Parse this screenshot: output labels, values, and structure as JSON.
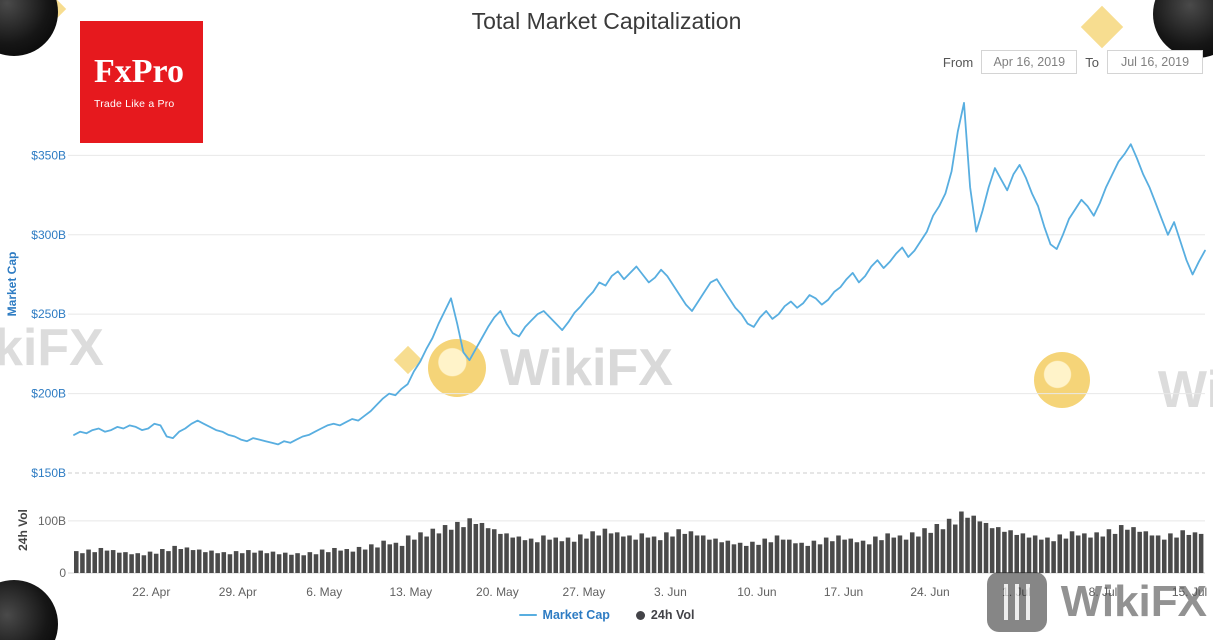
{
  "header": {
    "title": "Total Market Capitalization",
    "logo": {
      "name": "FxPro",
      "tagline": "Trade Like a Pro"
    },
    "date_range": {
      "from_label": "From",
      "from_value": "Apr 16, 2019",
      "to_label": "To",
      "to_value": "Jul 16, 2019"
    }
  },
  "watermarks": {
    "center_text": "WikiFX",
    "left_partial_text": "kiFX",
    "right_partial_text": "Wi",
    "badge_text": "WikiFX"
  },
  "legend": {
    "items": [
      {
        "label": "Market Cap",
        "color": "#58aee0",
        "marker": "line",
        "text_color": "#2e7cc3"
      },
      {
        "label": "24h Vol",
        "color": "#434348",
        "marker": "circle",
        "text_color": "#434348"
      }
    ]
  },
  "chart_data": [
    {
      "type": "line",
      "name": "Market Cap",
      "title": "Total Market Capitalization",
      "ylabel": "Market Cap",
      "unit": "$B",
      "ylim": [
        150,
        388
      ],
      "ytick_values": [
        150,
        200,
        250,
        300,
        350
      ],
      "yticks": [
        "$150B",
        "$200B",
        "$250B",
        "$300B",
        "$350B"
      ],
      "tick_color": "#2e7cc3",
      "line_color": "#58aee0",
      "x_start": "Apr 16, 2019",
      "x_end": "Jul 16, 2019",
      "points_per_day": 2,
      "x_labels": [
        {
          "text": "22. Apr",
          "day": 6
        },
        {
          "text": "29. Apr",
          "day": 13
        },
        {
          "text": "6. May",
          "day": 20
        },
        {
          "text": "13. May",
          "day": 27
        },
        {
          "text": "20. May",
          "day": 34
        },
        {
          "text": "27. May",
          "day": 41
        },
        {
          "text": "3. Jun",
          "day": 48
        },
        {
          "text": "10. Jun",
          "day": 55
        },
        {
          "text": "17. Jun",
          "day": 62
        },
        {
          "text": "24. Jun",
          "day": 69
        },
        {
          "text": "1. Jul",
          "day": 76
        },
        {
          "text": "8. Jul",
          "day": 83
        },
        {
          "text": "15. Jul",
          "day": 90
        }
      ],
      "values": [
        174,
        176,
        175,
        177,
        178,
        176,
        177,
        179,
        178,
        180,
        179,
        177,
        178,
        181,
        180,
        173,
        172,
        176,
        178,
        181,
        183,
        181,
        179,
        177,
        176,
        174,
        173,
        171,
        170,
        172,
        171,
        170,
        169,
        168,
        170,
        169,
        171,
        173,
        174,
        176,
        178,
        180,
        181,
        180,
        182,
        184,
        183,
        186,
        189,
        193,
        197,
        200,
        199,
        203,
        206,
        214,
        220,
        228,
        235,
        244,
        252,
        260,
        244,
        226,
        221,
        228,
        235,
        242,
        248,
        252,
        244,
        238,
        236,
        242,
        246,
        250,
        252,
        248,
        244,
        240,
        245,
        251,
        255,
        260,
        264,
        270,
        268,
        274,
        277,
        272,
        276,
        280,
        275,
        270,
        273,
        278,
        274,
        268,
        262,
        256,
        252,
        258,
        264,
        270,
        272,
        266,
        260,
        254,
        250,
        244,
        242,
        248,
        252,
        247,
        250,
        255,
        258,
        254,
        257,
        262,
        260,
        256,
        259,
        264,
        267,
        272,
        276,
        270,
        274,
        280,
        284,
        279,
        283,
        288,
        292,
        286,
        290,
        296,
        302,
        312,
        318,
        326,
        340,
        365,
        383,
        330,
        302,
        315,
        330,
        342,
        335,
        328,
        338,
        344,
        336,
        326,
        318,
        305,
        294,
        291,
        300,
        310,
        316,
        322,
        318,
        312,
        320,
        330,
        338,
        346,
        351,
        357,
        348,
        338,
        330,
        320,
        310,
        300,
        308,
        296,
        284,
        275,
        283,
        290
      ]
    },
    {
      "type": "bar",
      "name": "24h Vol",
      "ylabel": "24h Vol",
      "unit": "$B",
      "ylim": [
        0,
        165
      ],
      "ytick_values": [
        0,
        100
      ],
      "yticks": [
        "0",
        "100B"
      ],
      "tick_color": "#666666",
      "bar_color": "#4a4a4a",
      "values": [
        42,
        38,
        45,
        40,
        48,
        43,
        44,
        39,
        40,
        36,
        38,
        34,
        41,
        37,
        46,
        42,
        52,
        46,
        49,
        44,
        45,
        40,
        43,
        38,
        40,
        36,
        42,
        38,
        44,
        39,
        43,
        38,
        41,
        36,
        39,
        35,
        38,
        34,
        40,
        36,
        45,
        40,
        48,
        43,
        46,
        41,
        50,
        45,
        55,
        49,
        62,
        55,
        58,
        52,
        72,
        64,
        78,
        70,
        85,
        76,
        92,
        83,
        98,
        88,
        105,
        94,
        96,
        86,
        84,
        75,
        76,
        68,
        70,
        63,
        66,
        59,
        72,
        64,
        68,
        61,
        68,
        60,
        74,
        66,
        80,
        72,
        85,
        76,
        78,
        70,
        72,
        64,
        76,
        68,
        70,
        63,
        78,
        70,
        84,
        75,
        80,
        72,
        72,
        64,
        66,
        59,
        62,
        55,
        58,
        52,
        60,
        54,
        66,
        59,
        72,
        64,
        64,
        57,
        58,
        52,
        62,
        55,
        68,
        61,
        72,
        64,
        66,
        59,
        62,
        55,
        70,
        63,
        76,
        68,
        72,
        64,
        78,
        70,
        86,
        77,
        94,
        84,
        104,
        93,
        118,
        106,
        110,
        99,
        96,
        86,
        88,
        79,
        82,
        73,
        76,
        68,
        72,
        64,
        68,
        61,
        74,
        66,
        80,
        72,
        76,
        68,
        78,
        70,
        84,
        75,
        92,
        83,
        88,
        79,
        80,
        72,
        72,
        64,
        76,
        68,
        82,
        73,
        78,
        75
      ]
    }
  ]
}
